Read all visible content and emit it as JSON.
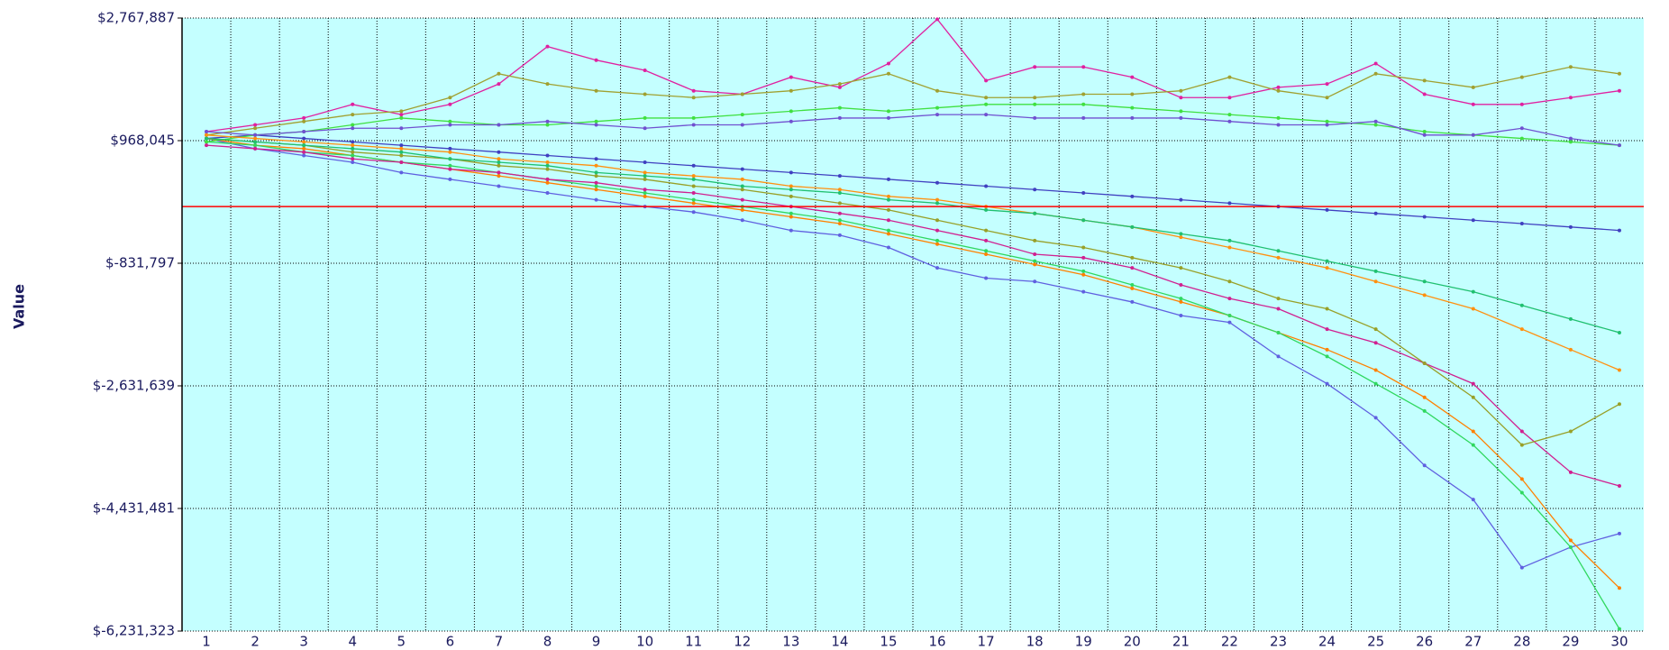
{
  "chart_data": {
    "type": "line",
    "y_label": "Value",
    "categories": [
      1,
      2,
      3,
      4,
      5,
      6,
      7,
      8,
      9,
      10,
      11,
      12,
      13,
      14,
      15,
      16,
      17,
      18,
      19,
      20,
      21,
      22,
      23,
      24,
      25,
      26,
      27,
      28,
      29,
      30
    ],
    "ylim": [
      -6231323,
      2767887
    ],
    "yticks": [
      {
        "value": -6231323,
        "label": "$-6,231,323"
      },
      {
        "value": -4431481,
        "label": "$-4,431,481"
      },
      {
        "value": -2631639,
        "label": "$-2,631,639"
      },
      {
        "value": -831797,
        "label": "$-831,797"
      },
      {
        "value": 968045,
        "label": "$968,045"
      },
      {
        "value": 2767887,
        "label": "$2,767,887"
      }
    ],
    "grid": true,
    "background": "#c4ffff",
    "reference_line": {
      "value": 0,
      "color": "#ff0000"
    },
    "series": [
      {
        "color": "#e020a0",
        "values": [
          1100000,
          1200000,
          1300000,
          1500000,
          1350000,
          1500000,
          1800000,
          2350000,
          2150000,
          2000000,
          1700000,
          1650000,
          1900000,
          1750000,
          2100000,
          2750000,
          1850000,
          2050000,
          2050000,
          1900000,
          1600000,
          1600000,
          1750000,
          1800000,
          2100000,
          1650000,
          1500000,
          1500000,
          1600000,
          1700000
        ]
      },
      {
        "color": "#a0a030",
        "values": [
          1050000,
          1150000,
          1250000,
          1350000,
          1400000,
          1600000,
          1950000,
          1800000,
          1700000,
          1650000,
          1600000,
          1650000,
          1700000,
          1800000,
          1950000,
          1700000,
          1600000,
          1600000,
          1650000,
          1650000,
          1700000,
          1900000,
          1700000,
          1600000,
          1950000,
          1850000,
          1750000,
          1900000,
          2050000,
          1950000
        ]
      },
      {
        "color": "#6060e0",
        "values": [
          1000000,
          850000,
          750000,
          650000,
          500000,
          400000,
          300000,
          200000,
          100000,
          0,
          -80000,
          -200000,
          -350000,
          -420000,
          -600000,
          -900000,
          -1050000,
          -1100000,
          -1250000,
          -1400000,
          -1600000,
          -1700000,
          -2200000,
          -2600000,
          -3100000,
          -3800000,
          -4300000,
          -5300000,
          -5000000,
          -4800000
        ]
      },
      {
        "color": "#ff8000",
        "values": [
          1000000,
          900000,
          850000,
          750000,
          650000,
          550000,
          450000,
          350000,
          250000,
          150000,
          50000,
          -50000,
          -150000,
          -250000,
          -400000,
          -550000,
          -700000,
          -850000,
          -1000000,
          -1200000,
          -1400000,
          -1600000,
          -1850000,
          -2100000,
          -2400000,
          -2800000,
          -3300000,
          -4000000,
          -4900000,
          -5600000
        ]
      },
      {
        "color": "#30d860",
        "values": [
          950000,
          900000,
          800000,
          750000,
          650000,
          600000,
          500000,
          400000,
          300000,
          200000,
          100000,
          0,
          -100000,
          -200000,
          -350000,
          -500000,
          -650000,
          -800000,
          -950000,
          -1150000,
          -1350000,
          -1600000,
          -1850000,
          -2200000,
          -2600000,
          -3000000,
          -3500000,
          -4200000,
          -5000000,
          -6200000
        ]
      },
      {
        "color": "#4040c0",
        "values": [
          1000000,
          1050000,
          1000000,
          950000,
          900000,
          850000,
          800000,
          750000,
          700000,
          650000,
          600000,
          550000,
          500000,
          450000,
          400000,
          350000,
          300000,
          250000,
          200000,
          150000,
          100000,
          50000,
          0,
          -50000,
          -100000,
          -150000,
          -200000,
          -250000,
          -300000,
          -350000
        ]
      },
      {
        "color": "#40e040",
        "values": [
          950000,
          1050000,
          1100000,
          1200000,
          1300000,
          1250000,
          1200000,
          1200000,
          1250000,
          1300000,
          1300000,
          1350000,
          1400000,
          1450000,
          1400000,
          1450000,
          1500000,
          1500000,
          1500000,
          1450000,
          1400000,
          1350000,
          1300000,
          1250000,
          1200000,
          1100000,
          1050000,
          1000000,
          950000,
          900000
        ]
      },
      {
        "color": "#ff9010",
        "values": [
          1050000,
          1000000,
          950000,
          900000,
          850000,
          800000,
          700000,
          650000,
          600000,
          500000,
          450000,
          400000,
          300000,
          250000,
          150000,
          100000,
          0,
          -100000,
          -200000,
          -300000,
          -450000,
          -600000,
          -750000,
          -900000,
          -1100000,
          -1300000,
          -1500000,
          -1800000,
          -2100000,
          -2400000
        ]
      },
      {
        "color": "#d02090",
        "values": [
          900000,
          850000,
          800000,
          700000,
          650000,
          550000,
          500000,
          400000,
          350000,
          250000,
          200000,
          100000,
          0,
          -100000,
          -200000,
          -350000,
          -500000,
          -700000,
          -750000,
          -900000,
          -1150000,
          -1350000,
          -1500000,
          -1800000,
          -2000000,
          -2300000,
          -2600000,
          -3300000,
          -3900000,
          -4100000
        ]
      },
      {
        "color": "#98a028",
        "values": [
          1000000,
          950000,
          900000,
          800000,
          750000,
          700000,
          600000,
          550000,
          450000,
          400000,
          300000,
          250000,
          150000,
          50000,
          -50000,
          -200000,
          -350000,
          -500000,
          -600000,
          -750000,
          -900000,
          -1100000,
          -1350000,
          -1500000,
          -1800000,
          -2300000,
          -2800000,
          -3500000,
          -3300000,
          -2900000
        ]
      },
      {
        "color": "#7050d0",
        "values": [
          1100000,
          1050000,
          1100000,
          1150000,
          1150000,
          1200000,
          1200000,
          1250000,
          1200000,
          1150000,
          1200000,
          1200000,
          1250000,
          1300000,
          1300000,
          1350000,
          1350000,
          1300000,
          1300000,
          1300000,
          1300000,
          1250000,
          1200000,
          1200000,
          1250000,
          1050000,
          1050000,
          1150000,
          1000000,
          900000
        ]
      },
      {
        "color": "#20c070",
        "values": [
          1000000,
          950000,
          900000,
          850000,
          800000,
          700000,
          650000,
          600000,
          500000,
          450000,
          400000,
          300000,
          250000,
          200000,
          100000,
          50000,
          -50000,
          -100000,
          -200000,
          -300000,
          -400000,
          -500000,
          -650000,
          -800000,
          -950000,
          -1100000,
          -1250000,
          -1450000,
          -1650000,
          -1850000
        ]
      }
    ]
  }
}
